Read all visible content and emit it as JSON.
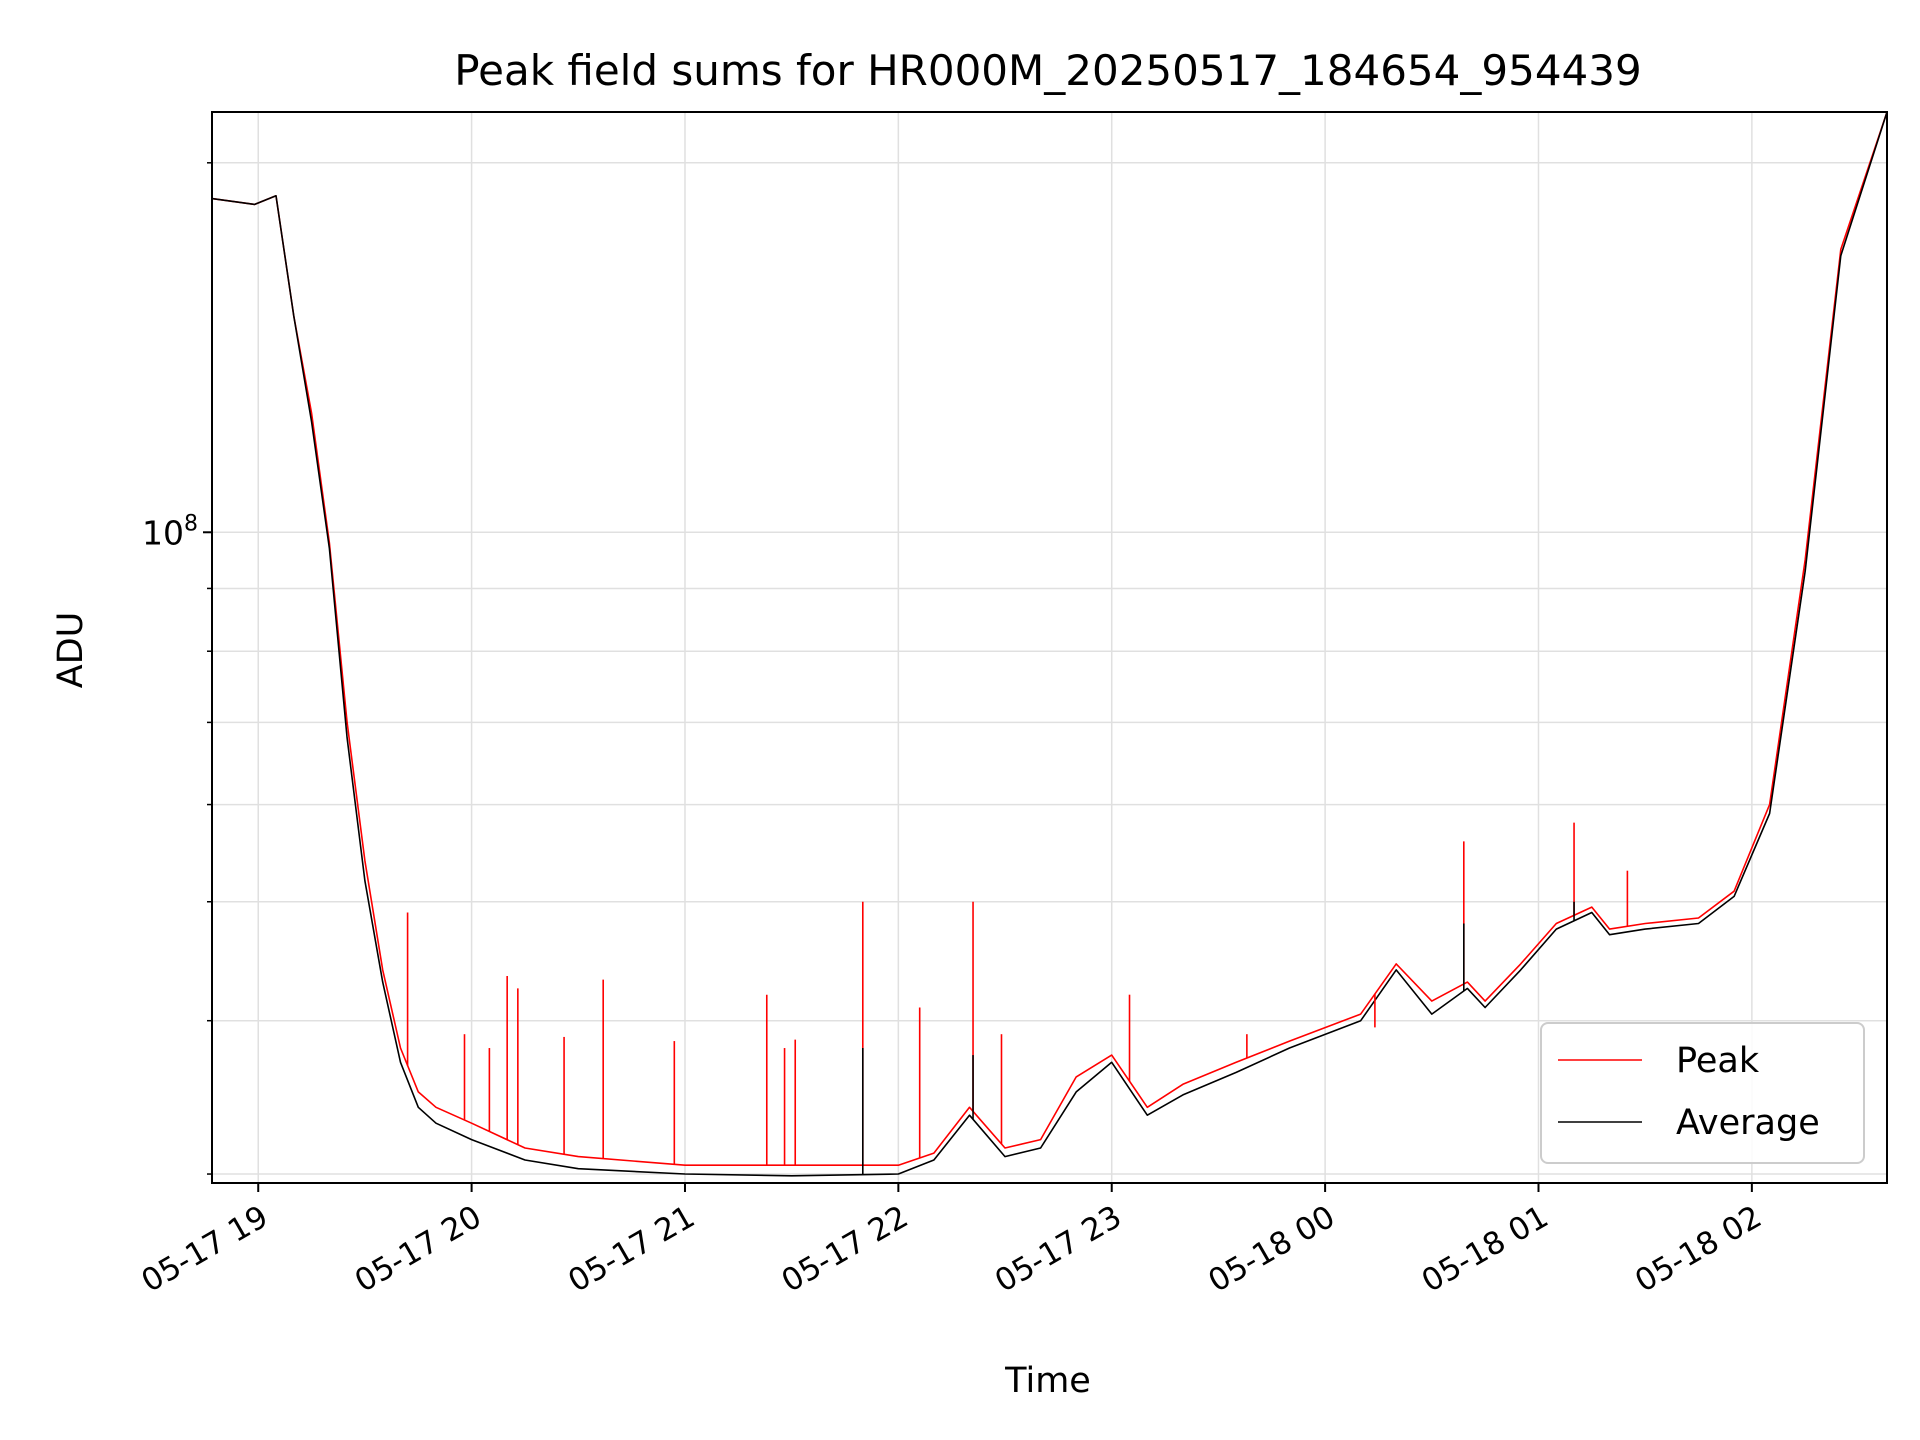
{
  "chart_data": {
    "type": "line",
    "title": "Peak field sums for HR000M_20250517_184654_954439",
    "xlabel": "Time",
    "ylabel": "ADU",
    "y_scale": "log",
    "ylim": [
      29500000,
      220000000
    ],
    "xlim": [
      "2025-05-17 18:47",
      "2025-05-18 02:38"
    ],
    "x_ticks": [
      "2025-05-17 19:00",
      "2025-05-17 20:00",
      "2025-05-17 21:00",
      "2025-05-17 22:00",
      "2025-05-17 23:00",
      "2025-05-18 00:00",
      "2025-05-18 01:00",
      "2025-05-18 02:00"
    ],
    "x_tick_labels": [
      "05-17 19",
      "05-17 20",
      "05-17 21",
      "05-17 22",
      "05-17 23",
      "05-18 00",
      "05-18 01",
      "05-18 02"
    ],
    "y_tick_label_base": "10",
    "y_tick_label_exponent": "8",
    "y_tick_label_value": 100000000,
    "grid": true,
    "legend_position": "lower-right",
    "colors": {
      "peak": "#ff0000",
      "average": "#000000",
      "grid": "#e0e0e0"
    },
    "series": [
      {
        "name": "Peak",
        "color": "#ff0000",
        "x": [
          "2025-05-17 18:47",
          "2025-05-17 18:59",
          "2025-05-17 19:05",
          "2025-05-17 19:10",
          "2025-05-17 19:15",
          "2025-05-17 19:20",
          "2025-05-17 19:25",
          "2025-05-17 19:30",
          "2025-05-17 19:35",
          "2025-05-17 19:40",
          "2025-05-17 19:45",
          "2025-05-17 19:50",
          "2025-05-17 20:00",
          "2025-05-17 20:15",
          "2025-05-17 20:30",
          "2025-05-17 21:00",
          "2025-05-17 21:30",
          "2025-05-17 22:00",
          "2025-05-17 22:10",
          "2025-05-17 22:20",
          "2025-05-17 22:30",
          "2025-05-17 22:40",
          "2025-05-17 22:50",
          "2025-05-17 23:00",
          "2025-05-17 23:10",
          "2025-05-17 23:20",
          "2025-05-17 23:35",
          "2025-05-17 23:50",
          "2025-05-18 00:10",
          "2025-05-18 00:20",
          "2025-05-18 00:30",
          "2025-05-18 00:40",
          "2025-05-18 00:45",
          "2025-05-18 00:55",
          "2025-05-18 01:05",
          "2025-05-18 01:15",
          "2025-05-18 01:20",
          "2025-05-18 01:30",
          "2025-05-18 01:45",
          "2025-05-18 01:55",
          "2025-05-18 02:05",
          "2025-05-18 02:15",
          "2025-05-18 02:25",
          "2025-05-18 02:38"
        ],
        "y": [
          187000000,
          185000000,
          188000000,
          150000000,
          125000000,
          98000000,
          70000000,
          54000000,
          44000000,
          38000000,
          35000000,
          34000000,
          33000000,
          31500000,
          31000000,
          30500000,
          30500000,
          30500000,
          31200000,
          34000000,
          31500000,
          32000000,
          36000000,
          37500000,
          34000000,
          35500000,
          37000000,
          38500000,
          40500000,
          44500000,
          41500000,
          43000000,
          41500000,
          44500000,
          48000000,
          49500000,
          47500000,
          48000000,
          48500000,
          51000000,
          60000000,
          95000000,
          170000000,
          220000000
        ]
      },
      {
        "name": "Average",
        "color": "#000000",
        "x": [
          "2025-05-17 18:47",
          "2025-05-17 18:59",
          "2025-05-17 19:05",
          "2025-05-17 19:10",
          "2025-05-17 19:15",
          "2025-05-17 19:20",
          "2025-05-17 19:25",
          "2025-05-17 19:30",
          "2025-05-17 19:35",
          "2025-05-17 19:40",
          "2025-05-17 19:45",
          "2025-05-17 19:50",
          "2025-05-17 20:00",
          "2025-05-17 20:15",
          "2025-05-17 20:30",
          "2025-05-17 21:00",
          "2025-05-17 21:30",
          "2025-05-17 22:00",
          "2025-05-17 22:10",
          "2025-05-17 22:20",
          "2025-05-17 22:30",
          "2025-05-17 22:40",
          "2025-05-17 22:50",
          "2025-05-17 23:00",
          "2025-05-17 23:10",
          "2025-05-17 23:20",
          "2025-05-17 23:35",
          "2025-05-17 23:50",
          "2025-05-18 00:10",
          "2025-05-18 00:20",
          "2025-05-18 00:30",
          "2025-05-18 00:40",
          "2025-05-18 00:45",
          "2025-05-18 00:55",
          "2025-05-18 01:05",
          "2025-05-18 01:15",
          "2025-05-18 01:20",
          "2025-05-18 01:30",
          "2025-05-18 01:45",
          "2025-05-18 01:55",
          "2025-05-18 02:05",
          "2025-05-18 02:15",
          "2025-05-18 02:25",
          "2025-05-18 02:38"
        ],
        "y": [
          187000000,
          185000000,
          188000000,
          150000000,
          123000000,
          97000000,
          68000000,
          52000000,
          43000000,
          37000000,
          34000000,
          33000000,
          32000000,
          30800000,
          30300000,
          30000000,
          29900000,
          30000000,
          30800000,
          33500000,
          31000000,
          31500000,
          35000000,
          37000000,
          33500000,
          34800000,
          36300000,
          38000000,
          40000000,
          44000000,
          40500000,
          42500000,
          41000000,
          44000000,
          47500000,
          49000000,
          47000000,
          47500000,
          48000000,
          50500000,
          59000000,
          93000000,
          168000000,
          220000000
        ]
      }
    ],
    "spikes": {
      "peak": [
        {
          "x": "2025-05-17 19:42",
          "y": 49000000
        },
        {
          "x": "2025-05-17 19:58",
          "y": 39000000
        },
        {
          "x": "2025-05-17 20:05",
          "y": 38000000
        },
        {
          "x": "2025-05-17 20:10",
          "y": 43500000
        },
        {
          "x": "2025-05-17 20:13",
          "y": 42500000
        },
        {
          "x": "2025-05-17 20:26",
          "y": 38800000
        },
        {
          "x": "2025-05-17 20:37",
          "y": 43200000
        },
        {
          "x": "2025-05-17 20:57",
          "y": 38500000
        },
        {
          "x": "2025-05-17 21:23",
          "y": 42000000
        },
        {
          "x": "2025-05-17 21:28",
          "y": 38000000
        },
        {
          "x": "2025-05-17 21:31",
          "y": 38600000
        },
        {
          "x": "2025-05-17 21:50",
          "y": 50000000
        },
        {
          "x": "2025-05-17 22:06",
          "y": 41000000
        },
        {
          "x": "2025-05-17 22:21",
          "y": 50000000
        },
        {
          "x": "2025-05-17 22:29",
          "y": 39000000
        },
        {
          "x": "2025-05-17 23:05",
          "y": 42000000
        },
        {
          "x": "2025-05-17 23:38",
          "y": 39000000
        },
        {
          "x": "2025-05-18 00:14",
          "y": 39500000
        },
        {
          "x": "2025-05-18 00:39",
          "y": 56000000
        },
        {
          "x": "2025-05-18 01:10",
          "y": 58000000
        },
        {
          "x": "2025-05-18 01:25",
          "y": 53000000
        }
      ],
      "average": [
        {
          "x": "2025-05-17 21:50",
          "y": 38000000
        },
        {
          "x": "2025-05-17 22:21",
          "y": 37500000
        },
        {
          "x": "2025-05-18 00:39",
          "y": 48000000
        },
        {
          "x": "2025-05-18 01:10",
          "y": 50000000
        }
      ]
    }
  }
}
